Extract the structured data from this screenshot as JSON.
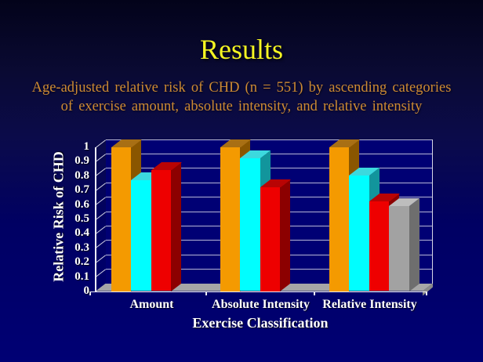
{
  "slide": {
    "title": "Results",
    "subtitle_line1": "Age-adjusted relative risk of CHD (n = 551) by ascending categories",
    "subtitle_line2": "of exercise amount, absolute intensity, and relative intensity"
  },
  "colors": {
    "title_text": "#f5f522",
    "subtitle_text": "#cd8a33",
    "background_top": "#03031a",
    "background_bottom": "#000074",
    "wall": "#000074",
    "gridline": "#d6d6e6",
    "axis_line": "#ebebf5",
    "floor": "#a6a6a6",
    "floor_edge": "#8a8a8a",
    "axis_text": "#ffffff"
  },
  "chart_data": {
    "type": "bar",
    "style": "3d-column",
    "title": "",
    "xlabel": "Exercise Classification",
    "ylabel": "Relative Risk of CHD",
    "ylim": [
      0,
      1
    ],
    "ytick_step": 0.1,
    "yticks": [
      "0",
      "0.1",
      "0.2",
      "0.3",
      "0.4",
      "0.5",
      "0.6",
      "0.7",
      "0.8",
      "0.9",
      "1"
    ],
    "grid": true,
    "legend_position": "none",
    "categories": [
      "Amount",
      "Absolute Intensity",
      "Relative Intensity"
    ],
    "groups": [
      {
        "label": "Amount",
        "bars": [
          {
            "color": "orange",
            "value": 1.0
          },
          {
            "color": "cyan",
            "value": 0.77
          },
          {
            "color": "red",
            "value": 0.84
          }
        ]
      },
      {
        "label": "Absolute Intensity",
        "bars": [
          {
            "color": "orange",
            "value": 1.0
          },
          {
            "color": "cyan",
            "value": 0.92
          },
          {
            "color": "red",
            "value": 0.72
          }
        ]
      },
      {
        "label": "Relative Intensity",
        "bars": [
          {
            "color": "orange",
            "value": 1.0
          },
          {
            "color": "cyan",
            "value": 0.8
          },
          {
            "color": "red",
            "value": 0.62
          },
          {
            "color": "gray",
            "value": 0.59
          }
        ]
      }
    ],
    "palette": {
      "orange": {
        "front": "#f49a01",
        "top": "#a86f14",
        "side": "#8a5600"
      },
      "cyan": {
        "front": "#00feff",
        "top": "#3cd9de",
        "side": "#12959c"
      },
      "red": {
        "front": "#ee0000",
        "top": "#b80404",
        "side": "#8c0000"
      },
      "gray": {
        "front": "#a2a2a2",
        "top": "#bdbdbd",
        "side": "#6e6e6e"
      }
    }
  }
}
